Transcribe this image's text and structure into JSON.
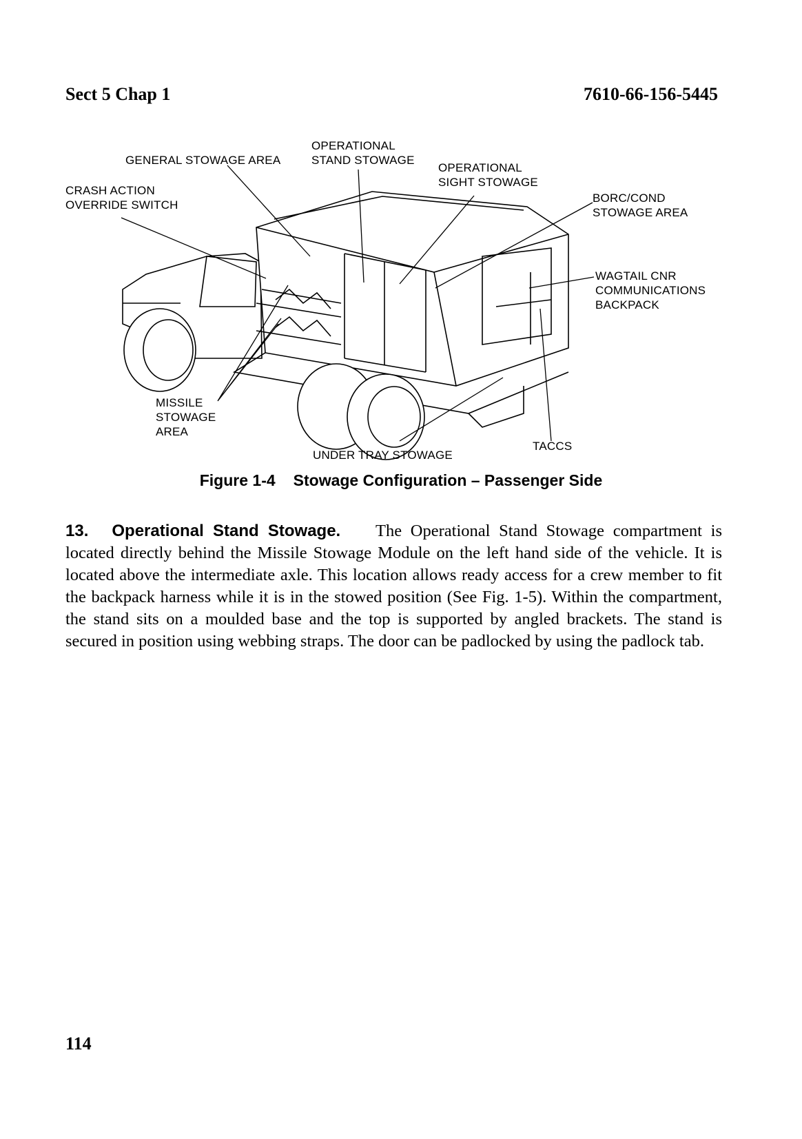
{
  "header": {
    "left": "Sect 5 Chap 1",
    "right": "7610-66-156-5445"
  },
  "figure": {
    "labels": {
      "general_stowage_area": "GENERAL STOWAGE AREA",
      "operational_stand_stowage": "OPERATIONAL\nSTAND STOWAGE",
      "operational_sight_stowage": "OPERATIONAL\nSIGHT STOWAGE",
      "crash_action_override_switch": "CRASH ACTION\nOVERRIDE SWITCH",
      "borc_cond_stowage_area": "BORC/COND\nSTOWAGE AREA",
      "wagtail_cnr_backpack": "WAGTAIL CNR\nCOMMUNICATIONS\nBACKPACK",
      "missile_stowage_area": "MISSILE\nSTOWAGE\nAREA",
      "under_tray_stowage": "UNDER TRAY STOWAGE",
      "taccs": "TACCS"
    },
    "caption_number": "Figure 1-4",
    "caption_title": "Stowage Configuration – Passenger Side"
  },
  "section": {
    "number": "13.",
    "heading": "Operational Stand Stowage.",
    "body": "The Operational Stand Stowage compartment is located directly behind the Missile Stowage Module on the left hand side of the vehicle. It is located above the intermediate axle. This location allows ready access for a crew member to fit the backpack harness while it is in the stowed position (See Fig. 1-5). Within the compartment, the stand sits on a moulded base and the top is supported by angled brackets. The stand is secured in position using webbing straps. The door can be padlocked by using the padlock tab."
  },
  "page_number": "114"
}
